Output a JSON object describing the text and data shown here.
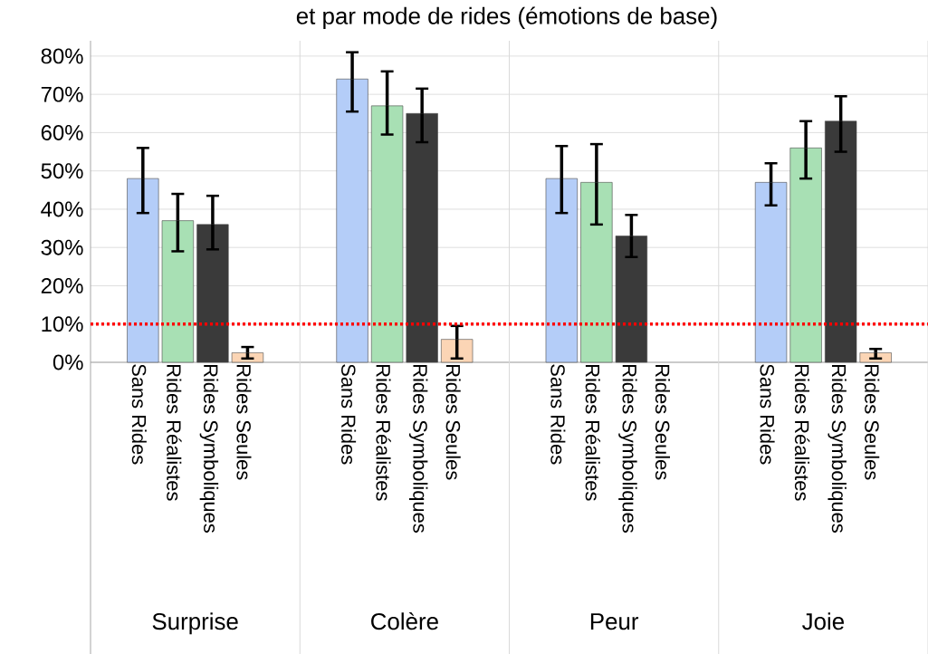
{
  "chart_data": {
    "type": "bar",
    "title": "et par mode de rides (émotions de base)",
    "categories": [
      "Sans Rides",
      "Rides Réalistes",
      "Rides Symboliques",
      "Rides Seules",
      "Sans Rides",
      "Rides Réalistes",
      "Rides Symboliques",
      "Rides Seules",
      "Sans Rides",
      "Rides Réalistes",
      "Rides Symboliques",
      "Rides Seules",
      "Sans Rides",
      "Rides Réalistes",
      "Rides Symboliques",
      "Rides Seules"
    ],
    "values": [
      48,
      37,
      36,
      2.5,
      74,
      67,
      65,
      6,
      48,
      47,
      33,
      null,
      47,
      56,
      63,
      2.5
    ],
    "colors": [
      "#b4cdf8",
      "#a8e0b4",
      "#3a3a3a",
      "#fbd5b5",
      "#b4cdf8",
      "#a8e0b4",
      "#3a3a3a",
      "#fbd5b5",
      "#b4cdf8",
      "#a8e0b4",
      "#3a3a3a",
      "#fbd5b5",
      "#b4cdf8",
      "#a8e0b4",
      "#3a3a3a",
      "#fbd5b5"
    ],
    "errors": [
      [
        39,
        56
      ],
      [
        29,
        44
      ],
      [
        29.5,
        43.5
      ],
      [
        1,
        4
      ],
      [
        65.5,
        81
      ],
      [
        59.5,
        76
      ],
      [
        57.5,
        71.5
      ],
      [
        1,
        9.5
      ],
      [
        39,
        56.5
      ],
      [
        36,
        57
      ],
      [
        27.5,
        38.5
      ],
      null,
      [
        41,
        52
      ],
      [
        48,
        63
      ],
      [
        55,
        69.5
      ],
      [
        1,
        3.5
      ]
    ],
    "annotations": [
      "Surprise",
      "Colère",
      "Peur",
      "Joie"
    ],
    "ylim": [
      0,
      84
    ],
    "yticks": [
      {
        "value": 0,
        "label": "0%"
      },
      {
        "value": 10,
        "label": "10%"
      },
      {
        "value": 20,
        "label": "20%"
      },
      {
        "value": 30,
        "label": "30%"
      },
      {
        "value": 40,
        "label": "40%"
      },
      {
        "value": 50,
        "label": "50%"
      },
      {
        "value": 60,
        "label": "60%"
      },
      {
        "value": 70,
        "label": "70%"
      },
      {
        "value": 80,
        "label": "80%"
      }
    ],
    "ref_lines": [
      {
        "axis": "y",
        "value": 10,
        "color": "#ff0000",
        "line_style": "dotted"
      }
    ],
    "grid": "y"
  }
}
